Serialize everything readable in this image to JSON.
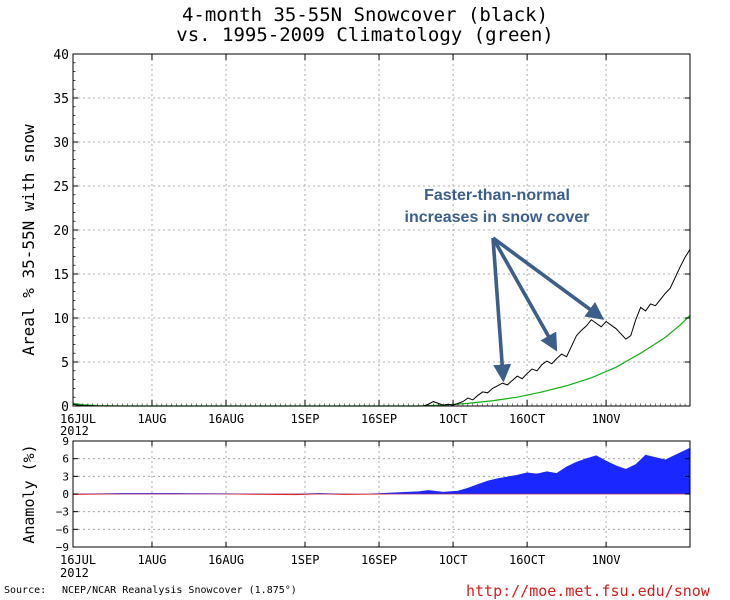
{
  "title": {
    "line1": "4-month 35-55N Snowcover (black)",
    "line2": "vs. 1995-2009 Climatology (green)"
  },
  "footer": {
    "source_label": "Source:",
    "source_text": "NCEP/NCAR Reanalysis Snowcover (1.875°)",
    "url": "http://moe.met.fsu.edu/snow"
  },
  "annotation": {
    "line1": "Faster-than-normal",
    "line2": "increases in snow cover",
    "color": "#3b5f8a"
  },
  "colors": {
    "observed": "#000000",
    "climatology": "#12b012",
    "anomaly_positive": "#1a28ff",
    "anomaly_negative": "#e02020",
    "grid": "#999999"
  },
  "chart_data": [
    {
      "type": "line",
      "ylabel": "Areal % 35-55N with snow",
      "ylim": [
        0,
        40
      ],
      "yticks": [
        0,
        5,
        10,
        15,
        20,
        25,
        30,
        35,
        40
      ],
      "x_tick_labels": [
        "16JUL",
        "1AUG",
        "16AUG",
        "1SEP",
        "16SEP",
        "1OCT",
        "16OCT",
        "1NOV"
      ],
      "x_tick_days": [
        0,
        16,
        31,
        47,
        62,
        77,
        92,
        108
      ],
      "year_label": "2012",
      "xlim_days": [
        0,
        125
      ],
      "grid": true,
      "series": [
        {
          "name": "black",
          "points": [
            [
              0,
              0.2
            ],
            [
              1,
              0.1
            ],
            [
              2,
              0.05
            ],
            [
              5,
              0
            ],
            [
              60,
              0
            ],
            [
              71,
              0
            ],
            [
              72,
              0.2
            ],
            [
              73,
              0.5
            ],
            [
              74,
              0.3
            ],
            [
              75,
              0.1
            ],
            [
              76,
              0.2
            ],
            [
              77,
              0.1
            ],
            [
              79,
              0.5
            ],
            [
              80,
              0.9
            ],
            [
              81,
              0.7
            ],
            [
              82,
              1.2
            ],
            [
              83,
              1.6
            ],
            [
              84,
              1.5
            ],
            [
              85,
              2.0
            ],
            [
              86,
              2.3
            ],
            [
              87,
              2.6
            ],
            [
              88,
              2.4
            ],
            [
              89,
              2.9
            ],
            [
              90,
              3.4
            ],
            [
              91,
              3.1
            ],
            [
              92,
              3.7
            ],
            [
              93,
              4.2
            ],
            [
              94,
              4.0
            ],
            [
              95,
              4.7
            ],
            [
              96,
              5.1
            ],
            [
              97,
              4.8
            ],
            [
              98,
              5.4
            ],
            [
              99,
              5.9
            ],
            [
              100,
              5.6
            ],
            [
              101,
              6.8
            ],
            [
              102,
              8.0
            ],
            [
              103,
              8.6
            ],
            [
              104,
              9.1
            ],
            [
              105,
              9.8
            ],
            [
              106,
              9.4
            ],
            [
              107,
              9.0
            ],
            [
              108,
              9.6
            ],
            [
              109,
              9.2
            ],
            [
              110,
              8.8
            ],
            [
              111,
              8.2
            ],
            [
              112,
              7.6
            ],
            [
              113,
              8.0
            ],
            [
              114,
              9.8
            ],
            [
              115,
              11.2
            ],
            [
              116,
              10.8
            ],
            [
              117,
              11.6
            ],
            [
              118,
              11.4
            ],
            [
              119,
              12.1
            ],
            [
              120,
              12.8
            ],
            [
              121,
              13.4
            ],
            [
              122,
              14.6
            ],
            [
              123,
              15.8
            ],
            [
              124,
              16.9
            ],
            [
              125,
              17.8
            ]
          ]
        },
        {
          "name": "green",
          "points": [
            [
              0,
              0.3
            ],
            [
              2,
              0.15
            ],
            [
              5,
              0.05
            ],
            [
              10,
              0
            ],
            [
              70,
              0
            ],
            [
              75,
              0.1
            ],
            [
              80,
              0.3
            ],
            [
              85,
              0.6
            ],
            [
              90,
              1.0
            ],
            [
              95,
              1.6
            ],
            [
              100,
              2.3
            ],
            [
              105,
              3.2
            ],
            [
              110,
              4.4
            ],
            [
              115,
              6.0
            ],
            [
              120,
              7.8
            ],
            [
              123,
              9.2
            ],
            [
              125,
              10.3
            ]
          ]
        }
      ]
    },
    {
      "type": "bar",
      "ylabel": "Anamoly (%)",
      "ylim": [
        -9,
        9
      ],
      "yticks": [
        9,
        6,
        3,
        0,
        -3,
        -6,
        -9
      ],
      "x_tick_labels": [
        "16JUL",
        "1AUG",
        "16AUG",
        "1SEP",
        "16SEP",
        "1OCT",
        "16OCT",
        "1NOV"
      ],
      "x_tick_days": [
        0,
        16,
        31,
        47,
        62,
        77,
        92,
        108
      ],
      "year_label": "2012",
      "xlim_days": [
        0,
        125
      ],
      "grid": true,
      "points": [
        [
          0,
          -0.1
        ],
        [
          10,
          0.1
        ],
        [
          20,
          0.1
        ],
        [
          30,
          0.05
        ],
        [
          40,
          -0.1
        ],
        [
          45,
          -0.15
        ],
        [
          50,
          0.1
        ],
        [
          55,
          -0.1
        ],
        [
          60,
          -0.05
        ],
        [
          65,
          0.2
        ],
        [
          70,
          0.4
        ],
        [
          72,
          0.6
        ],
        [
          75,
          0.3
        ],
        [
          78,
          0.5
        ],
        [
          80,
          1.0
        ],
        [
          82,
          1.6
        ],
        [
          84,
          2.2
        ],
        [
          86,
          2.6
        ],
        [
          88,
          2.9
        ],
        [
          90,
          3.2
        ],
        [
          92,
          3.6
        ],
        [
          94,
          3.4
        ],
        [
          96,
          3.8
        ],
        [
          98,
          3.5
        ],
        [
          100,
          4.6
        ],
        [
          102,
          5.4
        ],
        [
          104,
          6.0
        ],
        [
          106,
          6.5
        ],
        [
          108,
          5.6
        ],
        [
          110,
          4.8
        ],
        [
          112,
          4.2
        ],
        [
          114,
          5.0
        ],
        [
          116,
          6.6
        ],
        [
          118,
          6.2
        ],
        [
          120,
          5.8
        ],
        [
          122,
          6.6
        ],
        [
          124,
          7.4
        ],
        [
          125,
          7.8
        ]
      ]
    }
  ],
  "icons": []
}
